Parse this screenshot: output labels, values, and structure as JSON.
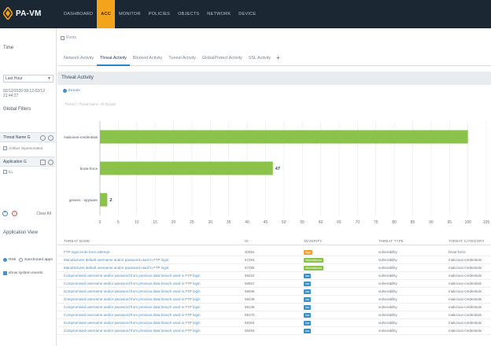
{
  "brand": {
    "name": "PA-VM"
  },
  "topnav": [
    "DASHBOARD",
    "ACC",
    "MONITOR",
    "POLICIES",
    "OBJECTS",
    "NETWORK",
    "DEVICE"
  ],
  "topnav_active_index": 1,
  "colors": {
    "topbar": "#1b2733",
    "accent": "#f4a31c",
    "bar": "#8bc34a",
    "link": "#4a90c8",
    "sev_high": "#f0a030",
    "sev_informational": "#8bc34a",
    "sev_low": "#3b8fc2"
  },
  "left": {
    "title": "Time",
    "time_select": "Last Hour",
    "date_range": "02/12/2020 09:12-02/12 21:44:27",
    "global_filters": "Global Filters",
    "threat_name_label": "Threat Name G",
    "threat_name_value": "Artifact impersonated",
    "application_label": "Application G",
    "application_value": "fiq",
    "clear_all": "Clear All",
    "application_view": "Application View",
    "view_options": [
      "Risk",
      "Sanctioned apps"
    ],
    "show_system": "show system events"
  },
  "main": {
    "breadcrumb": "Roots",
    "tabs": [
      "Network Activity",
      "Threat Activity",
      "Blocked Activity",
      "Tunnel Activity",
      "GlobalProtect Activity",
      "SSL Activity"
    ],
    "active_tab_index": 1,
    "section_title": "Threat Activity",
    "drill_label": "threats",
    "sub_breadcrumb": "Threat > Threat Name, All threats"
  },
  "chart_data": {
    "type": "bar",
    "orientation": "horizontal",
    "categories": [
      "malicious-credentials",
      "brute-force",
      "generic - spyware"
    ],
    "values": [
      100,
      47,
      2
    ],
    "data_labels": [
      "",
      "47",
      "2"
    ],
    "xlim": [
      0,
      105
    ],
    "xticks": [
      0,
      5,
      10,
      15,
      20,
      25,
      30,
      35,
      40,
      45,
      50,
      55,
      60,
      65,
      70,
      75,
      80,
      85,
      90,
      95,
      100,
      105
    ],
    "grid": true
  },
  "table": {
    "columns": [
      "THREAT NAME",
      "ID",
      "SEVERITY",
      "THREAT TYPE",
      "THREAT CATEGORY"
    ],
    "rows": [
      {
        "name": "FTP login brute force attempt",
        "id": "40052",
        "severity": "high",
        "type": "vulnerability",
        "category": "brute-force"
      },
      {
        "name": "Manufacturer default username and/or password used in FTP login",
        "id": "57294",
        "severity": "informational",
        "type": "vulnerability",
        "category": "malicious-credentials"
      },
      {
        "name": "Manufacturer default username and/or password used in FTP login",
        "id": "57295",
        "severity": "informational",
        "type": "vulnerability",
        "category": "malicious-credentials"
      },
      {
        "name": "Compromised username and/or password from previous data breach used in FTP login",
        "id": "58222",
        "severity": "low",
        "type": "vulnerability",
        "category": "malicious-credentials"
      },
      {
        "name": "Compromised username and/or password from previous data breach used in FTP login",
        "id": "58557",
        "severity": "low",
        "type": "vulnerability",
        "category": "malicious-credentials"
      },
      {
        "name": "Compromised username and/or password from previous data breach used in FTP login",
        "id": "58936",
        "severity": "low",
        "type": "vulnerability",
        "category": "malicious-credentials"
      },
      {
        "name": "Compromised username and/or password from previous data breach used in FTP login",
        "id": "59248",
        "severity": "low",
        "type": "vulnerability",
        "category": "malicious-credentials"
      },
      {
        "name": "Compromised username and/or password from previous data breach used in FTP login",
        "id": "59138",
        "severity": "low",
        "type": "vulnerability",
        "category": "malicious-credentials"
      },
      {
        "name": "Compromised username and/or password from previous data breach used in FTP login",
        "id": "59170",
        "severity": "low",
        "type": "vulnerability",
        "category": "malicious-credentials"
      },
      {
        "name": "Compromised username and/or password from previous data breach used in FTP login",
        "id": "59304",
        "severity": "low",
        "type": "vulnerability",
        "category": "malicious-credentials"
      },
      {
        "name": "Compromised username and/or password from previous data breach used in FTP login",
        "id": "59284",
        "severity": "low",
        "type": "vulnerability",
        "category": "malicious-credentials"
      }
    ]
  }
}
